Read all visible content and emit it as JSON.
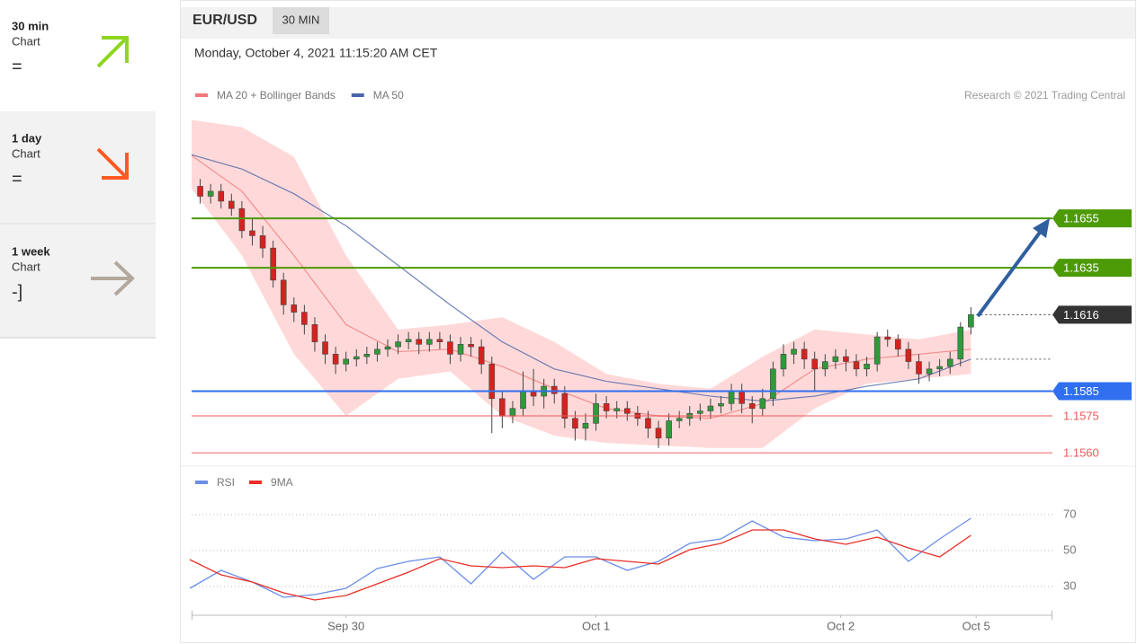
{
  "sidebar": [
    {
      "period": "30 min",
      "label": "Chart",
      "status": "="
    },
    {
      "period": "1 day",
      "label": "Chart",
      "status": "="
    },
    {
      "period": "1 week",
      "label": "Chart",
      "status": "-]"
    }
  ],
  "header": {
    "symbol": "EUR/USD",
    "interval": "30 MIN",
    "timestamp": "Monday, October 4, 2021 11:15:20 AM CET"
  },
  "chart_data": [
    {
      "type": "candlestick",
      "credit": "Research © 2021 Trading Central",
      "xlim": [
        -15,
        68
      ],
      "ylim": [
        1.1555,
        1.1698
      ],
      "colors": {
        "up": "#2f9a3a",
        "down": "#d4231f"
      },
      "x": [
        -14,
        -13,
        -12,
        -11,
        -10,
        -9,
        -8,
        -7,
        -6,
        -5,
        -4,
        -3,
        -2,
        -1,
        0,
        1,
        2,
        3,
        4,
        5,
        6,
        7,
        8,
        9,
        10,
        11,
        12,
        13,
        14,
        15,
        16,
        17,
        18,
        19,
        20,
        21,
        22,
        23,
        24,
        25,
        26,
        27,
        28,
        29,
        30,
        31,
        32,
        33,
        34,
        35,
        36,
        37,
        38,
        39,
        40,
        41,
        42,
        43,
        44,
        45,
        46,
        47,
        48,
        49,
        50,
        51,
        52,
        53,
        54,
        55,
        56,
        57,
        58,
        59,
        60
      ],
      "open": [
        1.1668,
        1.1664,
        1.1666,
        1.1662,
        1.1659,
        1.165,
        1.1648,
        1.1643,
        1.163,
        1.162,
        1.1617,
        1.1612,
        1.1605,
        1.16,
        1.1596,
        1.1598,
        1.1599,
        1.16,
        1.1602,
        1.1603,
        1.1605,
        1.1606,
        1.1604,
        1.1606,
        1.1605,
        1.16,
        1.1604,
        1.1603,
        1.1596,
        1.1582,
        1.1575,
        1.1578,
        1.1585,
        1.1583,
        1.1587,
        1.1584,
        1.1574,
        1.157,
        1.1572,
        1.158,
        1.1577,
        1.1578,
        1.1576,
        1.1574,
        1.157,
        1.1566,
        1.1573,
        1.1574,
        1.1576,
        1.1577,
        1.1579,
        1.158,
        1.1585,
        1.158,
        1.1578,
        1.1582,
        1.1594,
        1.16,
        1.1602,
        1.1598,
        1.1594,
        1.1597,
        1.1599,
        1.1597,
        1.1594,
        1.1596,
        1.1607,
        1.1606,
        1.1602,
        1.1597,
        1.1592,
        1.1594,
        1.1595,
        1.1598,
        1.1611
      ],
      "high": [
        1.1671,
        1.1669,
        1.1669,
        1.1665,
        1.1662,
        1.1655,
        1.1652,
        1.1646,
        1.1633,
        1.1623,
        1.162,
        1.1615,
        1.1608,
        1.1603,
        1.1601,
        1.1602,
        1.1603,
        1.1605,
        1.1606,
        1.1608,
        1.1609,
        1.1609,
        1.1609,
        1.1609,
        1.1608,
        1.1607,
        1.1607,
        1.1606,
        1.1599,
        1.1585,
        1.1581,
        1.1593,
        1.1594,
        1.159,
        1.159,
        1.1587,
        1.1577,
        1.1576,
        1.1584,
        1.1583,
        1.1581,
        1.1581,
        1.1579,
        1.1577,
        1.1573,
        1.1576,
        1.1577,
        1.1579,
        1.158,
        1.1582,
        1.1583,
        1.1588,
        1.1588,
        1.1583,
        1.1586,
        1.1597,
        1.1604,
        1.1605,
        1.1605,
        1.1601,
        1.16,
        1.1602,
        1.1602,
        1.16,
        1.1599,
        1.1609,
        1.161,
        1.1608,
        1.1605,
        1.16,
        1.1597,
        1.1598,
        1.1601,
        1.1613,
        1.1619
      ],
      "low": [
        1.1661,
        1.1661,
        1.1659,
        1.1656,
        1.1647,
        1.1644,
        1.1639,
        1.1627,
        1.1616,
        1.1613,
        1.1608,
        1.1601,
        1.1596,
        1.1592,
        1.1593,
        1.1595,
        1.1596,
        1.1597,
        1.1599,
        1.16,
        1.1602,
        1.16,
        1.1601,
        1.1602,
        1.1596,
        1.1597,
        1.1599,
        1.1592,
        1.1568,
        1.157,
        1.1572,
        1.1575,
        1.1579,
        1.1578,
        1.158,
        1.157,
        1.1565,
        1.1565,
        1.1569,
        1.1574,
        1.1574,
        1.1573,
        1.1571,
        1.1566,
        1.1562,
        1.1563,
        1.157,
        1.1571,
        1.1573,
        1.1574,
        1.1576,
        1.1577,
        1.1576,
        1.1572,
        1.1575,
        1.1579,
        1.1591,
        1.1596,
        1.1594,
        1.1585,
        1.1591,
        1.1594,
        1.1593,
        1.1591,
        1.1591,
        1.1593,
        1.1603,
        1.1599,
        1.1594,
        1.1588,
        1.1589,
        1.1591,
        1.1592,
        1.1595,
        1.1608
      ],
      "close": [
        1.1664,
        1.1666,
        1.1662,
        1.1659,
        1.165,
        1.1648,
        1.1643,
        1.163,
        1.162,
        1.1617,
        1.1612,
        1.1605,
        1.16,
        1.1596,
        1.1598,
        1.1599,
        1.16,
        1.1602,
        1.1603,
        1.1605,
        1.1606,
        1.1604,
        1.1606,
        1.1605,
        1.16,
        1.1604,
        1.1603,
        1.1596,
        1.1582,
        1.1575,
        1.1578,
        1.1585,
        1.1583,
        1.1587,
        1.1584,
        1.1574,
        1.157,
        1.1572,
        1.158,
        1.1577,
        1.1578,
        1.1576,
        1.1574,
        1.157,
        1.1566,
        1.1573,
        1.1574,
        1.1576,
        1.1577,
        1.1579,
        1.158,
        1.1585,
        1.158,
        1.1578,
        1.1582,
        1.1594,
        1.16,
        1.1602,
        1.1598,
        1.1594,
        1.1597,
        1.1599,
        1.1597,
        1.1594,
        1.1596,
        1.1607,
        1.1606,
        1.1602,
        1.1597,
        1.1592,
        1.1594,
        1.1595,
        1.1598,
        1.1611,
        1.1616
      ],
      "band": {
        "color": "#ffd9d9",
        "x": [
          -15,
          -10,
          -5,
          0,
          5,
          10,
          15,
          20,
          25,
          30,
          35,
          40,
          45,
          50,
          55,
          60
        ],
        "upper": [
          1.1695,
          1.1692,
          1.168,
          1.164,
          1.161,
          1.1612,
          1.1615,
          1.1605,
          1.1592,
          1.1588,
          1.1586,
          1.1599,
          1.161,
          1.1608,
          1.1606,
          1.161
        ],
        "lower": [
          1.1668,
          1.164,
          1.16,
          1.1575,
          1.159,
          1.1593,
          1.1575,
          1.1567,
          1.1564,
          1.1563,
          1.1562,
          1.1562,
          1.1578,
          1.1588,
          1.159,
          1.1592
        ]
      },
      "series": [
        {
          "name": "MA 20 + Bollinger Bands",
          "color": "#f07a7a",
          "x": [
            -15,
            -10,
            -5,
            0,
            5,
            10,
            15,
            20,
            25,
            30,
            35,
            40,
            45,
            50,
            55,
            60
          ],
          "values": [
            1.1681,
            1.1666,
            1.164,
            1.1612,
            1.1601,
            1.1602,
            1.1595,
            1.1586,
            1.1578,
            1.1575,
            1.1574,
            1.158,
            1.1594,
            1.1598,
            1.16,
            1.1602
          ]
        },
        {
          "name": "MA 50",
          "color": "#4a64a8",
          "x": [
            -15,
            -10,
            -5,
            0,
            5,
            10,
            15,
            20,
            25,
            30,
            35,
            40,
            45,
            50,
            55,
            60
          ],
          "values": [
            1.1681,
            1.1675,
            1.1665,
            1.1652,
            1.1636,
            1.162,
            1.1605,
            1.1594,
            1.1589,
            1.1586,
            1.1583,
            1.1581,
            1.1583,
            1.1587,
            1.159,
            1.1598
          ]
        }
      ],
      "levels": [
        {
          "value": 1.1655,
          "label": "1.1655",
          "color": "#4c9a06",
          "style": "tag",
          "line": "solid"
        },
        {
          "value": 1.1635,
          "label": "1.1635",
          "color": "#4c9a06",
          "style": "tag",
          "line": "solid"
        },
        {
          "value": 1.1616,
          "label": "1.1616",
          "color": "#333333",
          "style": "tag",
          "line": "dotted"
        },
        {
          "value": 1.1585,
          "label": "1.1585",
          "color": "#2f6ff0",
          "style": "tag",
          "line": "solid"
        },
        {
          "value": 1.1575,
          "label": "1.1575",
          "color": "#f05a5a",
          "style": "text",
          "line": "solid"
        },
        {
          "value": 1.156,
          "label": "1.1560",
          "color": "#f05a5a",
          "style": "text",
          "line": "solid"
        }
      ]
    },
    {
      "type": "line",
      "xlim": [
        -15,
        68
      ],
      "ylim": [
        17,
        80
      ],
      "yticks": [
        30,
        50,
        70
      ],
      "grid": true,
      "xticks": [
        {
          "value": 0,
          "label": "Sep 30"
        },
        {
          "value": 24,
          "label": "Oct 1"
        },
        {
          "value": 47.5,
          "label": "Oct 2"
        },
        {
          "value": 60.5,
          "label": "Oct 5"
        }
      ],
      "series": [
        {
          "name": "RSI",
          "color": "#6b8ee8",
          "x": [
            -15,
            -12,
            -9,
            -6,
            -3,
            0,
            3,
            6,
            9,
            12,
            15,
            18,
            21,
            24,
            27,
            30,
            33,
            36,
            39,
            42,
            45,
            48,
            51,
            54,
            57,
            60
          ],
          "values": [
            29,
            39,
            32.5,
            24,
            25.5,
            29,
            40,
            44,
            46.5,
            31.5,
            49,
            34,
            46.5,
            46.5,
            39,
            44,
            54,
            56.5,
            66.5,
            57.5,
            55.5,
            56.5,
            61.5,
            44,
            56.5,
            68
          ]
        },
        {
          "name": "9MA",
          "color": "#ea2e26",
          "x": [
            -15,
            -12,
            -9,
            -6,
            -3,
            0,
            3,
            6,
            9,
            12,
            15,
            18,
            21,
            24,
            27,
            30,
            33,
            36,
            39,
            42,
            45,
            48,
            51,
            54,
            57,
            60
          ],
          "values": [
            45,
            36.5,
            32.5,
            26.5,
            22.5,
            25,
            31.5,
            38,
            45.5,
            41.5,
            40.5,
            41.5,
            40.5,
            45.5,
            44,
            42.5,
            50.5,
            54,
            61.5,
            61.5,
            56.5,
            53.5,
            57.5,
            51.5,
            46.5,
            58.5
          ]
        }
      ]
    }
  ]
}
